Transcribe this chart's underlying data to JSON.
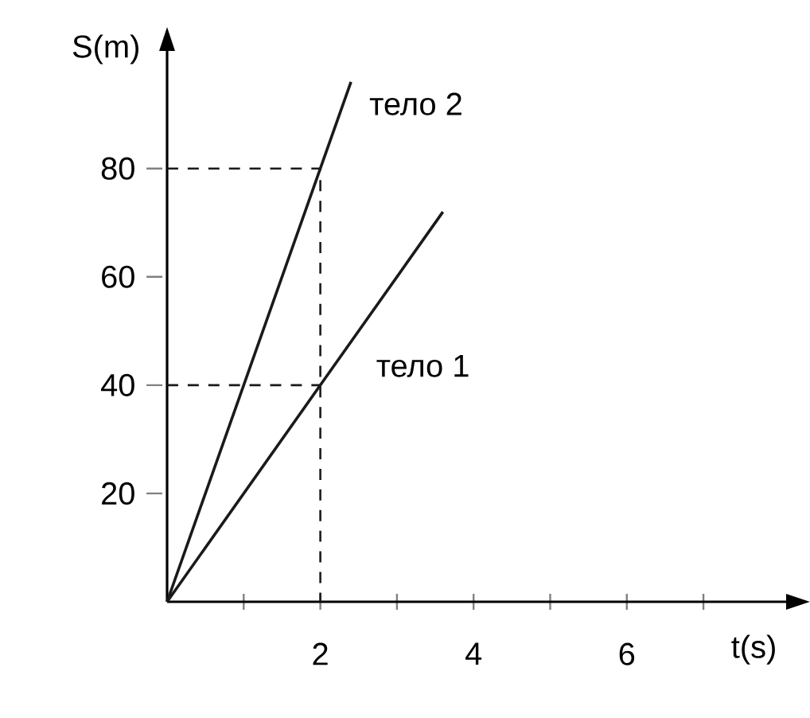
{
  "chart_data": {
    "type": "line",
    "xlabel": "t(s)",
    "ylabel": "S(m)",
    "xlim": [
      0,
      8.1
    ],
    "ylim": [
      0,
      102
    ],
    "xticks": [
      {
        "value": 1,
        "label": null
      },
      2,
      {
        "value": 3,
        "label": null
      },
      4,
      {
        "value": 5,
        "label": null
      },
      6,
      {
        "value": 7,
        "label": null
      }
    ],
    "yticks": [
      20,
      40,
      60,
      80
    ],
    "grid": false,
    "marker": "none",
    "series": [
      {
        "name": "тело 2",
        "color": "#1a1a1a",
        "x": [
          0,
          2,
          2.4
        ],
        "values": [
          0,
          80,
          96
        ],
        "line_style": "solid"
      },
      {
        "name": "тело 1",
        "color": "#1a1a1a",
        "x": [
          0,
          2,
          3.6
        ],
        "values": [
          0,
          40,
          72
        ],
        "line_style": "solid"
      },
      {
        "color": "#1a1a1a",
        "x": [
          0,
          2,
          2
        ],
        "values": [
          80,
          80,
          0
        ],
        "line_style": "dashed"
      },
      {
        "color": "#1a1a1a",
        "x": [
          0,
          2
        ],
        "values": [
          40,
          40
        ],
        "line_style": "dashed"
      }
    ]
  }
}
